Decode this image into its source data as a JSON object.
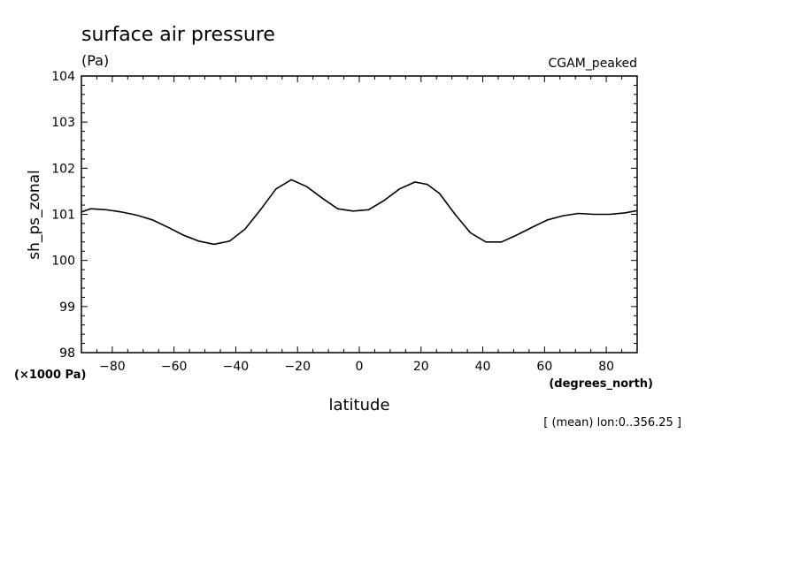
{
  "chart_data": {
    "type": "line",
    "title": "surface air pressure",
    "units_label": "(Pa)",
    "dataset_label": "CGAM_peaked",
    "ylabel": "sh_ps_zonal",
    "y_scale_label": "(×1000 Pa)",
    "xlabel": "latitude",
    "x_units_label": "(degrees_north)",
    "footer_note": "[ (mean) lon:0..356.25 ]",
    "xlim": [
      -90,
      90
    ],
    "ylim": [
      98,
      104
    ],
    "x_ticks": [
      -80,
      -60,
      -40,
      -20,
      0,
      20,
      40,
      60,
      80
    ],
    "x_tick_labels": [
      "−80",
      "−60",
      "−40",
      "−20",
      "0",
      "20",
      "40",
      "60",
      "80"
    ],
    "y_ticks": [
      98,
      99,
      100,
      101,
      102,
      103,
      104
    ],
    "y_tick_labels": [
      "98",
      "99",
      "100",
      "101",
      "102",
      "103",
      "104"
    ],
    "grid": false,
    "line_color": "#000000",
    "series": [
      {
        "x": [
          -90,
          -87,
          -82,
          -77,
          -72,
          -67,
          -62,
          -57,
          -52,
          -47,
          -42,
          -37,
          -32,
          -27,
          -22,
          -17,
          -12,
          -7,
          -2,
          3,
          8,
          13,
          18,
          22,
          26,
          31,
          36,
          41,
          46,
          51,
          56,
          61,
          66,
          71,
          76,
          81,
          86,
          90
        ],
        "y": [
          101.05,
          101.12,
          101.1,
          101.05,
          100.98,
          100.88,
          100.72,
          100.55,
          100.42,
          100.35,
          100.42,
          100.68,
          101.1,
          101.55,
          101.75,
          101.6,
          101.35,
          101.12,
          101.07,
          101.1,
          101.3,
          101.55,
          101.7,
          101.65,
          101.45,
          101.0,
          100.6,
          100.4,
          100.4,
          100.55,
          100.72,
          100.88,
          100.97,
          101.02,
          101.0,
          101.0,
          101.03,
          101.08
        ]
      }
    ]
  }
}
